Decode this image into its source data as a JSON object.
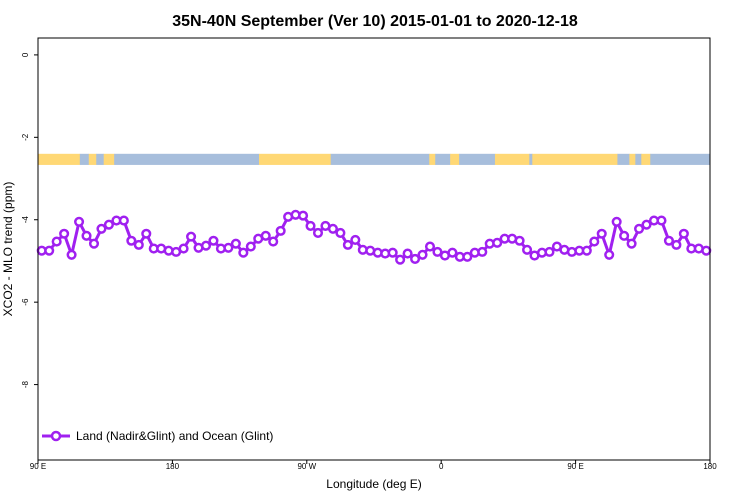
{
  "chart_data": {
    "type": "line",
    "title": "35N-40N September (Ver 10)   2015-01-01 to 2020-12-18",
    "xlabel": "Longitude (deg E)",
    "ylabel": "XCO2 - MLO trend (ppm)",
    "xlim": [
      90,
      540
    ],
    "ylim": [
      -9.83,
      0.41
    ],
    "x_ticks": [
      {
        "value": 90,
        "label": "90 E"
      },
      {
        "value": 180,
        "label": "180"
      },
      {
        "value": 270,
        "label": "90 W"
      },
      {
        "value": 360,
        "label": "0"
      },
      {
        "value": 450,
        "label": "90 E"
      },
      {
        "value": 540,
        "label": "180"
      }
    ],
    "y_ticks": [
      {
        "value": 0,
        "label": "0"
      },
      {
        "value": -2,
        "label": "-2"
      },
      {
        "value": -4,
        "label": "-4"
      },
      {
        "value": -6,
        "label": "-6"
      },
      {
        "value": -8,
        "label": "-8"
      }
    ],
    "grid": false,
    "legend": {
      "placement": "bottom-left",
      "entries": [
        "Land (Nadir&Glint) and Ocean (Glint)"
      ]
    },
    "series": [
      {
        "name": "Land (Nadir&Glint) and Ocean (Glint)",
        "color": "#a020f0",
        "x_start": 92.5,
        "x_step": 5,
        "values": [
          -4.75,
          -4.75,
          -4.53,
          -4.34,
          -4.85,
          -4.05,
          -4.39,
          -4.58,
          -4.22,
          -4.12,
          -4.02,
          -4.02,
          -4.51,
          -4.61,
          -4.34,
          -4.7,
          -4.7,
          -4.75,
          -4.78,
          -4.7,
          -4.41,
          -4.68,
          -4.63,
          -4.51,
          -4.7,
          -4.68,
          -4.58,
          -4.8,
          -4.65,
          -4.46,
          -4.39,
          -4.53,
          -4.27,
          -3.93,
          -3.88,
          -3.9,
          -4.15,
          -4.32,
          -4.15,
          -4.22,
          -4.32,
          -4.61,
          -4.49,
          -4.73,
          -4.75,
          -4.8,
          -4.82,
          -4.8,
          -4.97,
          -4.82,
          -4.95,
          -4.85,
          -4.65,
          -4.78,
          -4.87,
          -4.8,
          -4.9,
          -4.9,
          -4.8,
          -4.78,
          -4.58,
          -4.56,
          -4.46,
          -4.46,
          -4.51,
          -4.73,
          -4.87,
          -4.8,
          -4.78,
          -4.65,
          -4.73,
          -4.78,
          -4.75,
          -4.75,
          -4.53,
          -4.34,
          -4.85,
          -4.05,
          -4.39,
          -4.58,
          -4.22,
          -4.12,
          -4.02,
          -4.02,
          -4.51,
          -4.61,
          -4.34,
          -4.7,
          -4.7,
          -4.75
        ]
      }
    ],
    "surface_band": {
      "y_range": [
        -2.67,
        -2.4
      ],
      "colors": {
        "land": "#ffd875",
        "ocean": "#a7bedc"
      },
      "segments": [
        {
          "from": 90,
          "to": 118,
          "type": "land"
        },
        {
          "from": 118,
          "to": 124,
          "type": "ocean"
        },
        {
          "from": 124,
          "to": 129,
          "type": "land"
        },
        {
          "from": 129,
          "to": 134,
          "type": "ocean"
        },
        {
          "from": 134,
          "to": 141,
          "type": "land"
        },
        {
          "from": 141,
          "to": 238,
          "type": "ocean"
        },
        {
          "from": 238,
          "to": 286,
          "type": "land"
        },
        {
          "from": 286,
          "to": 352,
          "type": "ocean"
        },
        {
          "from": 352,
          "to": 356,
          "type": "land"
        },
        {
          "from": 356,
          "to": 366,
          "type": "ocean"
        },
        {
          "from": 366,
          "to": 372,
          "type": "land"
        },
        {
          "from": 372,
          "to": 396,
          "type": "ocean"
        },
        {
          "from": 396,
          "to": 419,
          "type": "land"
        },
        {
          "from": 419,
          "to": 421,
          "type": "ocean"
        },
        {
          "from": 421,
          "to": 478,
          "type": "land"
        },
        {
          "from": 478,
          "to": 486,
          "type": "ocean"
        },
        {
          "from": 486,
          "to": 490,
          "type": "land"
        },
        {
          "from": 490,
          "to": 494,
          "type": "ocean"
        },
        {
          "from": 494,
          "to": 500,
          "type": "land"
        },
        {
          "from": 500,
          "to": 540,
          "type": "ocean"
        }
      ]
    }
  }
}
